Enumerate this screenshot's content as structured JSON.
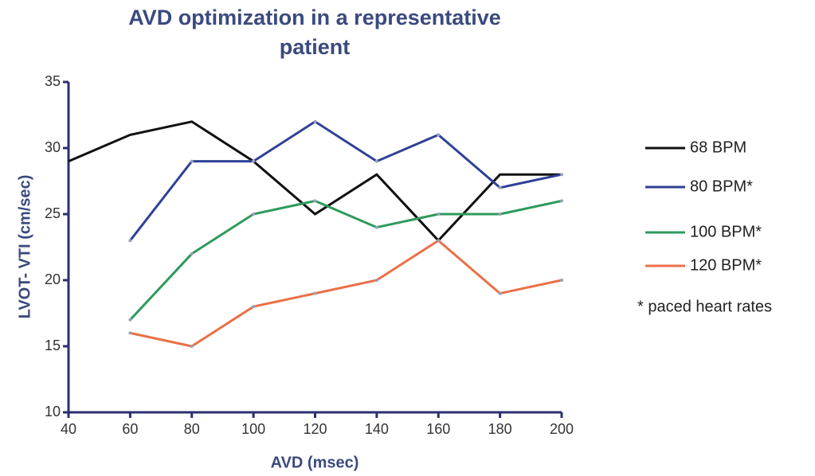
{
  "chart_data": {
    "type": "line",
    "title": "AVD optimization in a representative patient",
    "x_label": "AVD (msec)",
    "y_label": "LVOT- VTI (cm/sec)",
    "annotation": "* paced heart rates",
    "x": [
      40,
      60,
      80,
      100,
      120,
      140,
      160,
      180,
      200
    ],
    "series": [
      {
        "name": "68 BPM",
        "color": "#111111",
        "values": [
          29,
          31,
          32,
          29,
          25,
          28,
          23,
          28,
          28
        ]
      },
      {
        "name": "80 BPM*",
        "color": "#2f4196",
        "values": [
          null,
          23,
          29,
          29,
          32,
          29,
          31,
          27,
          28
        ]
      },
      {
        "name": "100 BPM*",
        "color": "#2e9a5c",
        "values": [
          null,
          17,
          22,
          25,
          26,
          24,
          25,
          25,
          26
        ]
      },
      {
        "name": "120 BPM*",
        "color": "#ea7048",
        "values": [
          null,
          16,
          15,
          18,
          19,
          20,
          23,
          19,
          20
        ]
      }
    ],
    "xlim": [
      40,
      200
    ],
    "xticks": [
      40,
      60,
      80,
      100,
      120,
      140,
      160,
      180,
      200
    ],
    "ylim": [
      10,
      35
    ],
    "yticks": [
      10,
      15,
      20,
      25,
      30,
      35
    ],
    "grid": false,
    "legend_position": "right",
    "axis_color": "#2b2f6e"
  }
}
